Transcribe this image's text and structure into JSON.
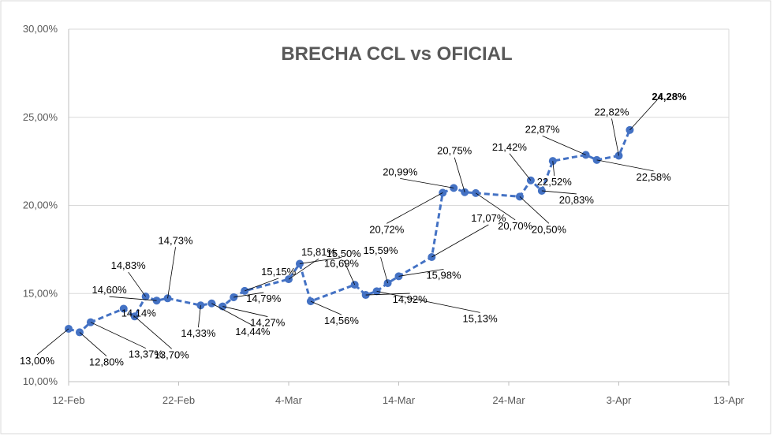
{
  "chart_data": {
    "type": "line",
    "title": "BRECHA CCL vs OFICIAL",
    "xlabel": "",
    "ylabel": "",
    "x_tick_labels": [
      "12-Feb",
      "22-Feb",
      "4-Mar",
      "14-Mar",
      "24-Mar",
      "3-Apr",
      "13-Apr"
    ],
    "y_tick_labels": [
      "10,00%",
      "15,00%",
      "20,00%",
      "25,00%",
      "30,00%"
    ],
    "xlim_days": [
      0,
      60
    ],
    "ylim": [
      10,
      30
    ],
    "grid": "horizontal",
    "series": [
      {
        "name": "Brecha CCL vs Oficial",
        "color": "#4472c4",
        "style": "dashed",
        "points": [
          {
            "x": 0,
            "y": 13.0,
            "label": "13,00%"
          },
          {
            "x": 1,
            "y": 12.8,
            "label": "12,80%"
          },
          {
            "x": 2,
            "y": 13.37,
            "label": "13,37%"
          },
          {
            "x": 5,
            "y": 14.14,
            "label": "14,14%"
          },
          {
            "x": 6,
            "y": 13.7,
            "label": "13,70%"
          },
          {
            "x": 7,
            "y": 14.83,
            "label": "14,83%"
          },
          {
            "x": 8,
            "y": 14.6,
            "label": "14,60%"
          },
          {
            "x": 9,
            "y": 14.73,
            "label": "14,73%"
          },
          {
            "x": 12,
            "y": 14.33,
            "label": "14,33%"
          },
          {
            "x": 13,
            "y": 14.44,
            "label": "14,44%"
          },
          {
            "x": 14,
            "y": 14.27,
            "label": "14,27%"
          },
          {
            "x": 15,
            "y": 14.79,
            "label": "14,79%"
          },
          {
            "x": 16,
            "y": 15.15,
            "label": "15,15%"
          },
          {
            "x": 20,
            "y": 15.81,
            "label": "15,81%"
          },
          {
            "x": 21,
            "y": 16.69,
            "label": "16,69%"
          },
          {
            "x": 22,
            "y": 14.56,
            "label": "14,56%"
          },
          {
            "x": 26,
            "y": 15.5,
            "label": "15,50%"
          },
          {
            "x": 27,
            "y": 14.92,
            "label": "14,92%"
          },
          {
            "x": 28,
            "y": 15.13,
            "label": "15,13%"
          },
          {
            "x": 29,
            "y": 15.59,
            "label": "15,59%"
          },
          {
            "x": 30,
            "y": 15.98,
            "label": "15,98%"
          },
          {
            "x": 33,
            "y": 17.07,
            "label": "17,07%"
          },
          {
            "x": 34,
            "y": 20.72,
            "label": "20,72%"
          },
          {
            "x": 35,
            "y": 20.99,
            "label": "20,99%"
          },
          {
            "x": 36,
            "y": 20.75,
            "label": "20,75%"
          },
          {
            "x": 37,
            "y": 20.7,
            "label": "20,70%"
          },
          {
            "x": 41,
            "y": 20.5,
            "label": "20,50%"
          },
          {
            "x": 42,
            "y": 21.42,
            "label": "21,42%"
          },
          {
            "x": 43,
            "y": 20.83,
            "label": "20,83%"
          },
          {
            "x": 44,
            "y": 22.52,
            "label": "22,52%"
          },
          {
            "x": 47,
            "y": 22.87,
            "label": "22,87%"
          },
          {
            "x": 48,
            "y": 22.58,
            "label": "22,58%"
          },
          {
            "x": 50,
            "y": 22.82,
            "label": "22,82%"
          },
          {
            "x": 51,
            "y": 24.28,
            "label": "24,28%",
            "highlight": true
          }
        ]
      }
    ]
  }
}
